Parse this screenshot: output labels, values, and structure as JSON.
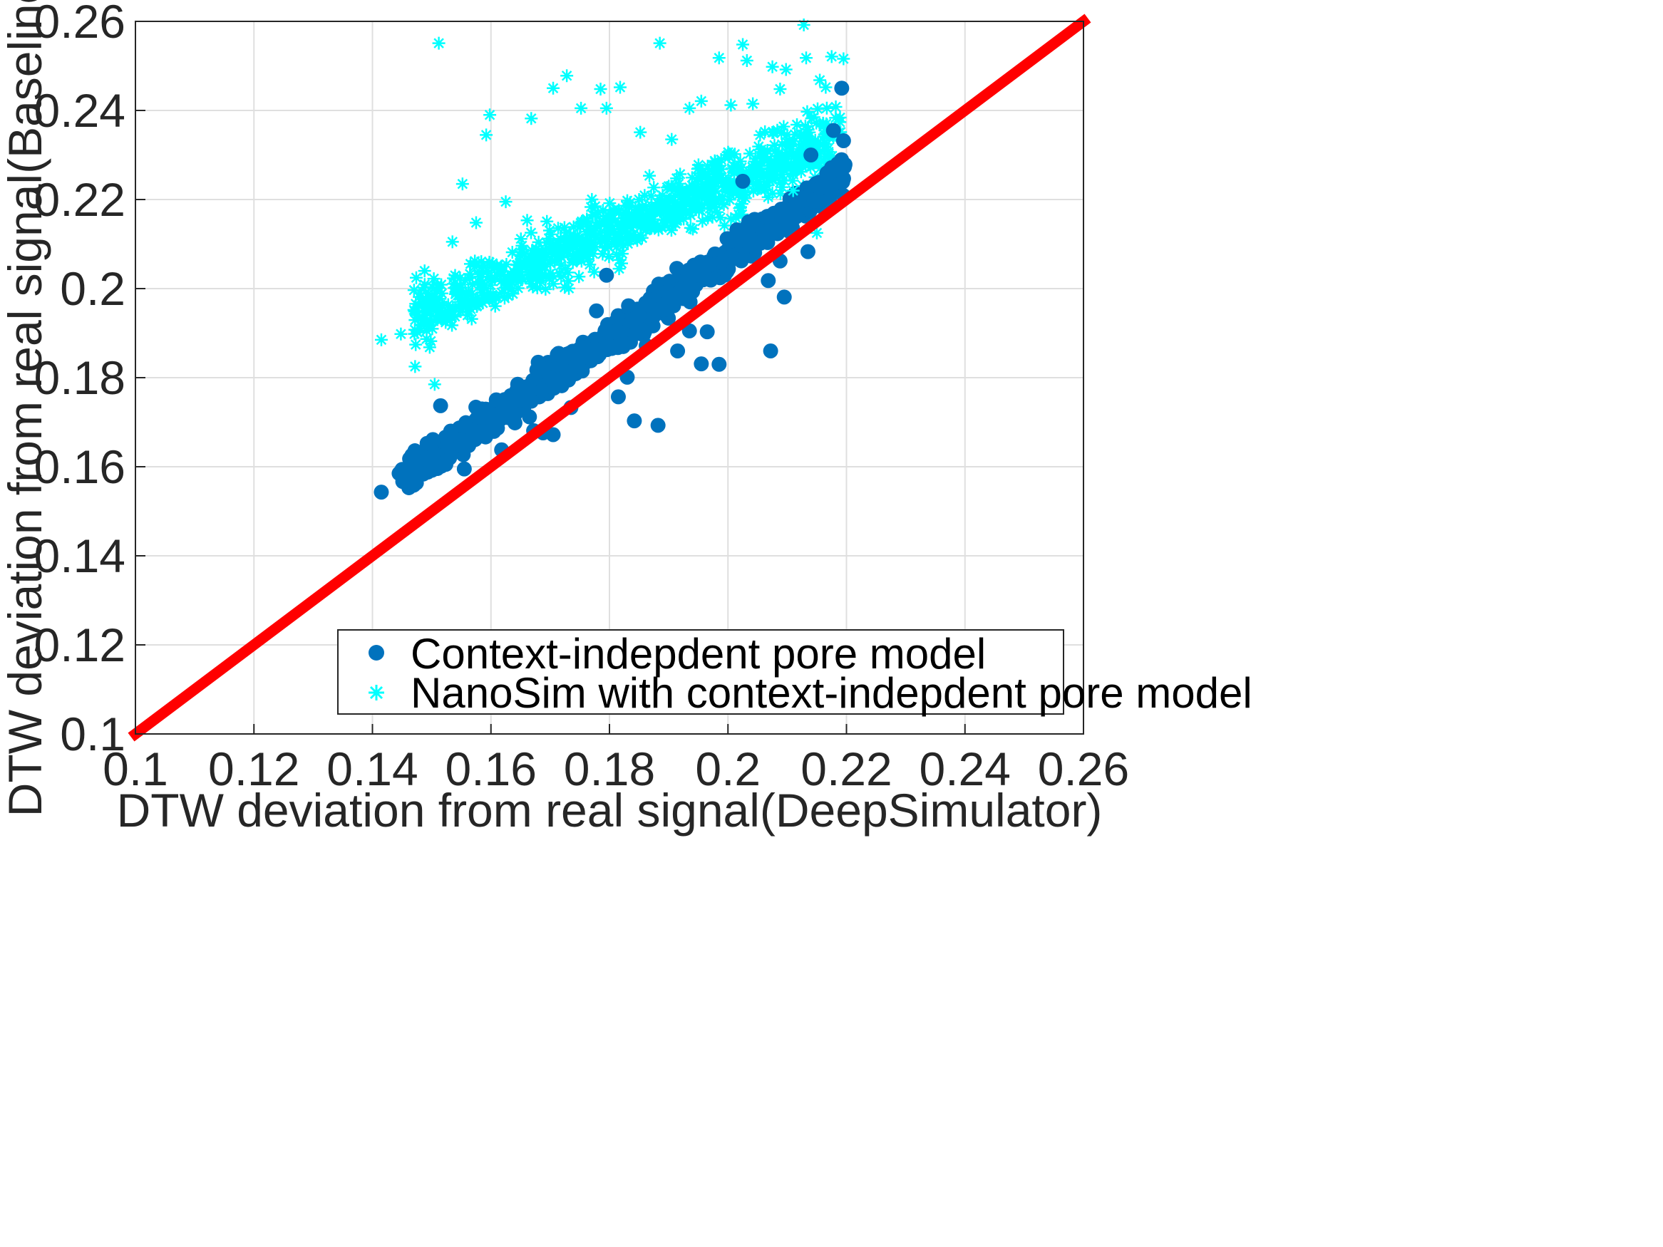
{
  "chart_data": {
    "type": "scatter",
    "xlabel": "DTW deviation from real signal(DeepSimulator)",
    "ylabel": "DTW deviation from real signal(Baselines)",
    "xlim": [
      0.1,
      0.26
    ],
    "ylim": [
      0.1,
      0.26
    ],
    "xticks": [
      "0.1",
      "0.12",
      "0.14",
      "0.16",
      "0.18",
      "0.2",
      "0.22",
      "0.24",
      "0.26"
    ],
    "yticks": [
      "0.1",
      "0.12",
      "0.14",
      "0.16",
      "0.18",
      "0.2",
      "0.22",
      "0.24",
      "0.26"
    ],
    "grid": true,
    "legend_position": "bottom-right",
    "reference_line": {
      "x": [
        0.1,
        0.26
      ],
      "y": [
        0.1,
        0.26
      ],
      "color": "#ff0000"
    },
    "series": [
      {
        "name": "Context-indepdent pore model",
        "marker": "filled-circle",
        "color": "#0072bd",
        "points": [
          [
            0.1415,
            0.1543
          ],
          [
            0.1445,
            0.1585
          ],
          [
            0.1468,
            0.1593
          ],
          [
            0.1502,
            0.1661
          ],
          [
            0.1515,
            0.1737
          ],
          [
            0.1532,
            0.168
          ],
          [
            0.1555,
            0.1595
          ],
          [
            0.1618,
            0.1638
          ],
          [
            0.1665,
            0.1712
          ],
          [
            0.1672,
            0.1681
          ],
          [
            0.1688,
            0.1676
          ],
          [
            0.1705,
            0.1672
          ],
          [
            0.1712,
            0.1852
          ],
          [
            0.1735,
            0.1733
          ],
          [
            0.1758,
            0.185
          ],
          [
            0.1778,
            0.195
          ],
          [
            0.1795,
            0.203
          ],
          [
            0.1815,
            0.1757
          ],
          [
            0.183,
            0.1801
          ],
          [
            0.1842,
            0.1703
          ],
          [
            0.1862,
            0.1872
          ],
          [
            0.1882,
            0.1693
          ],
          [
            0.1895,
            0.1954
          ],
          [
            0.1915,
            0.186
          ],
          [
            0.1935,
            0.1905
          ],
          [
            0.1955,
            0.1831
          ],
          [
            0.1985,
            0.183
          ],
          [
            0.1965,
            0.1903
          ],
          [
            0.2015,
            0.2132
          ],
          [
            0.2025,
            0.2241
          ],
          [
            0.2035,
            0.215
          ],
          [
            0.2055,
            0.2102
          ],
          [
            0.2068,
            0.2018
          ],
          [
            0.2072,
            0.186
          ],
          [
            0.2088,
            0.2062
          ],
          [
            0.2095,
            0.1981
          ],
          [
            0.2115,
            0.2161
          ],
          [
            0.2135,
            0.2083
          ],
          [
            0.2155,
            0.2225
          ],
          [
            0.2162,
            0.218
          ],
          [
            0.2175,
            0.2262
          ],
          [
            0.2178,
            0.2355
          ],
          [
            0.2185,
            0.228
          ],
          [
            0.2192,
            0.245
          ],
          [
            0.2195,
            0.2332
          ],
          [
            0.2192,
            0.227
          ],
          [
            0.214,
            0.23
          ],
          [
            0.212,
            0.22
          ],
          [
            0.204,
            0.214
          ],
          [
            0.199,
            0.206
          ],
          [
            0.195,
            0.203
          ],
          [
            0.19,
            0.198
          ],
          [
            0.185,
            0.194
          ],
          [
            0.18,
            0.19
          ],
          [
            0.175,
            0.185
          ],
          [
            0.17,
            0.18
          ],
          [
            0.165,
            0.175
          ],
          [
            0.16,
            0.171
          ],
          [
            0.155,
            0.166
          ],
          [
            0.15,
            0.161
          ]
        ]
      },
      {
        "name": "NanoSim with context-indepdent pore model",
        "marker": "asterisk",
        "color": "#00ffff",
        "points": [
          [
            0.1415,
            0.1885
          ],
          [
            0.1448,
            0.1898
          ],
          [
            0.1472,
            0.1825
          ],
          [
            0.1505,
            0.1785
          ],
          [
            0.1512,
            0.2551
          ],
          [
            0.1535,
            0.2105
          ],
          [
            0.1552,
            0.2235
          ],
          [
            0.1575,
            0.2148
          ],
          [
            0.1592,
            0.2345
          ],
          [
            0.1598,
            0.239
          ],
          [
            0.1625,
            0.2195
          ],
          [
            0.165,
            0.2052
          ],
          [
            0.1668,
            0.2382
          ],
          [
            0.1705,
            0.245
          ],
          [
            0.1728,
            0.2478
          ],
          [
            0.1752,
            0.2405
          ],
          [
            0.1785,
            0.2448
          ],
          [
            0.1795,
            0.2405
          ],
          [
            0.1818,
            0.2452
          ],
          [
            0.1852,
            0.2351
          ],
          [
            0.1885,
            0.2551
          ],
          [
            0.1905,
            0.2335
          ],
          [
            0.1935,
            0.2405
          ],
          [
            0.1955,
            0.2421
          ],
          [
            0.1985,
            0.2518
          ],
          [
            0.2005,
            0.2412
          ],
          [
            0.2025,
            0.2548
          ],
          [
            0.2032,
            0.2512
          ],
          [
            0.2042,
            0.2415
          ],
          [
            0.2075,
            0.2498
          ],
          [
            0.2088,
            0.2448
          ],
          [
            0.2098,
            0.2492
          ],
          [
            0.2128,
            0.2592
          ],
          [
            0.2132,
            0.2518
          ],
          [
            0.2145,
            0.2385
          ],
          [
            0.2155,
            0.2468
          ],
          [
            0.2165,
            0.2452
          ],
          [
            0.2175,
            0.2521
          ],
          [
            0.2195,
            0.2516
          ],
          [
            0.2182,
            0.2408
          ],
          [
            0.215,
            0.2125
          ],
          [
            0.211,
            0.222
          ],
          [
            0.207,
            0.226
          ],
          [
            0.205,
            0.224
          ],
          [
            0.2,
            0.23
          ],
          [
            0.195,
            0.227
          ],
          [
            0.19,
            0.223
          ],
          [
            0.185,
            0.22
          ],
          [
            0.18,
            0.217
          ],
          [
            0.175,
            0.214
          ],
          [
            0.17,
            0.21
          ],
          [
            0.165,
            0.206
          ],
          [
            0.16,
            0.202
          ],
          [
            0.155,
            0.198
          ],
          [
            0.15,
            0.194
          ],
          [
            0.148,
            0.191
          ]
        ]
      }
    ]
  }
}
